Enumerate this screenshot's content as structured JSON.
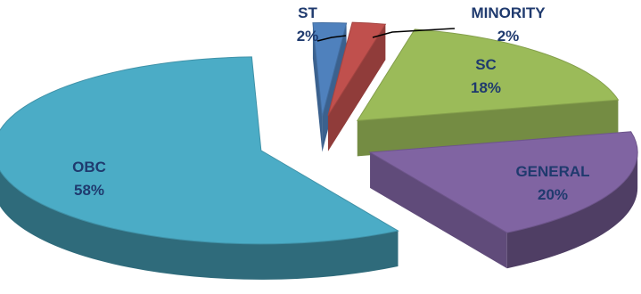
{
  "chart_data": {
    "type": "pie",
    "categories": [
      "ST",
      "MINORITY",
      "SC",
      "GENERAL",
      "OBC"
    ],
    "values": [
      2,
      2,
      18,
      20,
      58
    ],
    "value_labels": [
      "2%",
      "2%",
      "18%",
      "20%",
      "58%"
    ],
    "colors": [
      "#4f81bd",
      "#c0504d",
      "#9bbb59",
      "#8064a2",
      "#4bacc6"
    ],
    "title": "",
    "legend": "none",
    "exploded": true,
    "three_d": true
  }
}
